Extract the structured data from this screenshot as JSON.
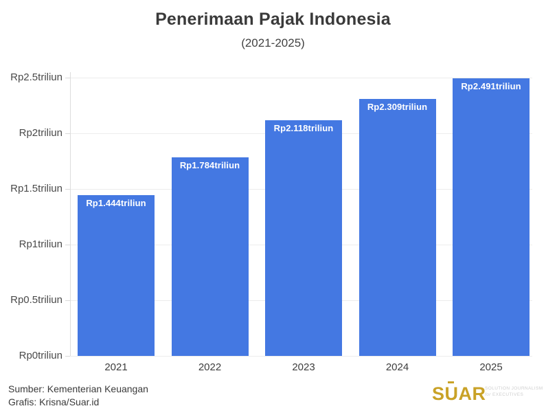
{
  "header": {
    "title": "Penerimaan Pajak Indonesia",
    "subtitle": "(2021-2025)"
  },
  "chart_data": {
    "type": "bar",
    "title": "Penerimaan Pajak Indonesia",
    "subtitle": "(2021-2025)",
    "categories": [
      "2021",
      "2022",
      "2023",
      "2024",
      "2025"
    ],
    "values": [
      1.444,
      1.784,
      2.118,
      2.309,
      2.491
    ],
    "bar_labels": [
      "Rp1.444triliun",
      "Rp1.784triliun",
      "Rp2.118triliun",
      "Rp2.309triliun",
      "Rp2.491triliun"
    ],
    "unit": "triliun rupiah",
    "xlabel": "",
    "ylabel": "",
    "ylim": [
      0,
      2.5
    ],
    "yticks": [
      0,
      0.5,
      1,
      1.5,
      2,
      2.5
    ],
    "ytick_labels": [
      "Rp0triliun",
      "Rp0.5triliun",
      "Rp1triliun",
      "Rp1.5triliun",
      "Rp2triliun",
      "Rp2.5triliun"
    ],
    "grid": true,
    "legend": false,
    "bar_color": "#4478e2",
    "bar_label_color": "#ffffff"
  },
  "footer": {
    "source": "Sumber: Kementerian Keuangan",
    "credit": "Grafis: Krisna/Suar.id",
    "logo": {
      "text": "SUAR",
      "color": "#c9a227",
      "tagline_line1": "Solution Journalism",
      "tagline_for": "for",
      "tagline_line2": "Executives"
    }
  }
}
